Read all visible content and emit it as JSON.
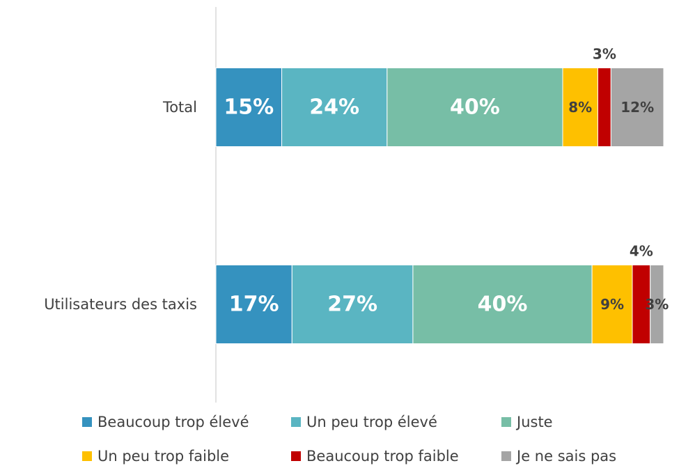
{
  "chart_data": {
    "type": "stacked-bar-horizontal-100",
    "categories": [
      "Total",
      "Utilisateurs des taxis"
    ],
    "series": [
      {
        "name": "Beaucoup trop élevé",
        "color": "#3592bf",
        "values": [
          15,
          17
        ],
        "value_labels": [
          "15%",
          "17%"
        ]
      },
      {
        "name": "Un peu trop élevé",
        "color": "#5ab5c2",
        "values": [
          24,
          27
        ],
        "value_labels": [
          "24%",
          "27%"
        ]
      },
      {
        "name": "Juste",
        "color": "#77bea6",
        "values": [
          40,
          40
        ],
        "value_labels": [
          "40%",
          "40%"
        ]
      },
      {
        "name": "Un peu trop faible",
        "color": "#fec000",
        "values": [
          8,
          9
        ],
        "value_labels": [
          "8%",
          "9%"
        ]
      },
      {
        "name": "Beaucoup trop faible",
        "color": "#c00000",
        "values": [
          3,
          4
        ],
        "value_labels": [
          "3%",
          "4%"
        ]
      },
      {
        "name": "Je ne sais pas",
        "color": "#a5a5a5",
        "values": [
          12,
          3
        ],
        "value_labels": [
          "12%",
          "3%"
        ]
      }
    ]
  }
}
